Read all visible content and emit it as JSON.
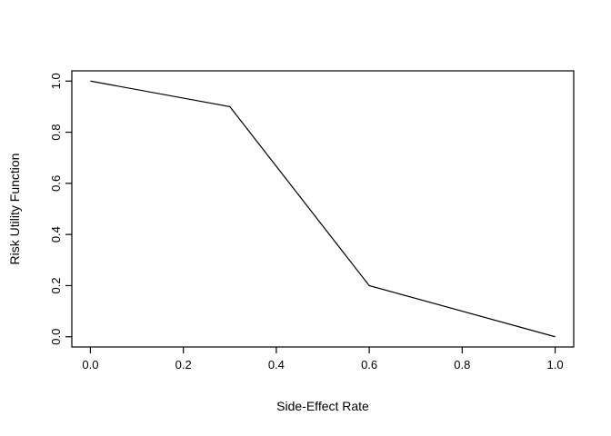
{
  "chart_data": {
    "type": "line",
    "title": "",
    "xlabel": "Side-Effect Rate",
    "ylabel": "Risk Utility Function",
    "x": [
      0.0,
      0.3,
      0.6,
      1.0
    ],
    "y": [
      1.0,
      0.9,
      0.2,
      0.0
    ],
    "series": [
      {
        "name": "risk-utility-function",
        "x": [
          0.0,
          0.3,
          0.6,
          1.0
        ],
        "y": [
          1.0,
          0.9,
          0.2,
          0.0
        ]
      }
    ],
    "xticks": [
      0.0,
      0.2,
      0.4,
      0.6,
      0.8,
      1.0
    ],
    "xtick_labels": [
      "0.0",
      "0.2",
      "0.4",
      "0.6",
      "0.8",
      "1.0"
    ],
    "yticks": [
      0.0,
      0.2,
      0.4,
      0.6,
      0.8,
      1.0
    ],
    "ytick_labels": [
      "0.0",
      "0.2",
      "0.4",
      "0.6",
      "0.8",
      "1.0"
    ],
    "xlim": [
      -0.04,
      1.04
    ],
    "ylim": [
      -0.04,
      1.04
    ],
    "grid": false,
    "legend_position": "none",
    "line_color": "#000000",
    "axis_color": "#000000",
    "text_color": "#000000",
    "background_color": "#ffffff"
  }
}
